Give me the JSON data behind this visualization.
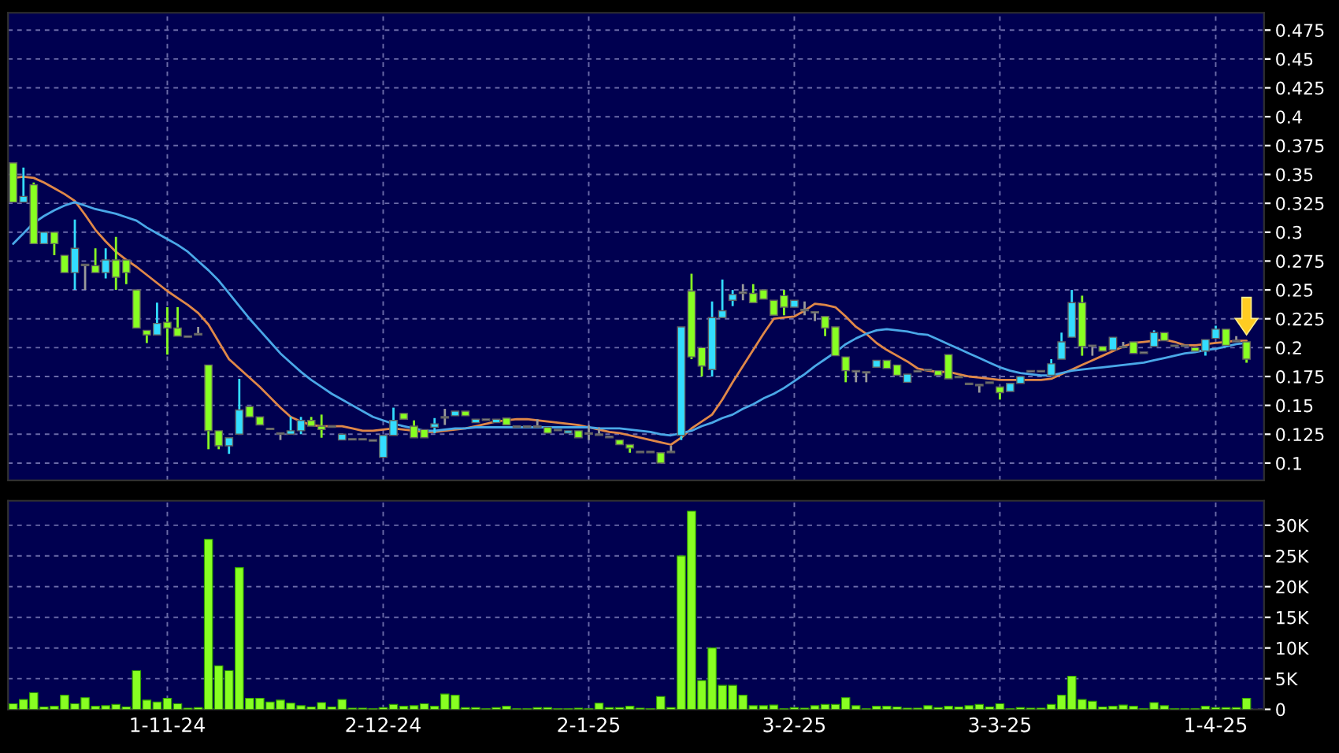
{
  "chart_data": [
    {
      "type": "candlestick",
      "categories": [
        null,
        null,
        null,
        null,
        null,
        null,
        null,
        null,
        null,
        null,
        null,
        null,
        null,
        null,
        null,
        null,
        null,
        null,
        null,
        null,
        null,
        null,
        null,
        null,
        null,
        null,
        null,
        null,
        null,
        null,
        null,
        null,
        null,
        null,
        null,
        null,
        null,
        null,
        null,
        null,
        null,
        null,
        null,
        null,
        null,
        null,
        null,
        null,
        null,
        null,
        null,
        null,
        null,
        null,
        null,
        null,
        null,
        null,
        null,
        null,
        null,
        null,
        null,
        null,
        null,
        null,
        null,
        null,
        null,
        null,
        null,
        null,
        null,
        null,
        null,
        null,
        null,
        null,
        null,
        null,
        null,
        null,
        null,
        null,
        null,
        null,
        null,
        null,
        null,
        null,
        null,
        null,
        null,
        null,
        null,
        null,
        null,
        null,
        null,
        null,
        null,
        null,
        null,
        null,
        null,
        null,
        null,
        null,
        null,
        null,
        null,
        null,
        null,
        null,
        null,
        null,
        null,
        null,
        null,
        null,
        null
      ],
      "ohlc": [
        [
          0.36,
          0.36,
          0.326,
          0.326
        ],
        [
          0.326,
          0.356,
          0.326,
          0.331
        ],
        [
          0.341,
          0.343,
          0.29,
          0.29
        ],
        [
          0.29,
          0.3,
          0.29,
          0.3
        ],
        [
          0.3,
          0.3,
          0.28,
          0.29
        ],
        [
          0.28,
          0.28,
          0.265,
          0.265
        ],
        [
          0.265,
          0.311,
          0.25,
          0.286
        ],
        [
          0.271,
          0.271,
          0.25,
          0.271
        ],
        [
          0.271,
          0.286,
          0.265,
          0.265
        ],
        [
          0.265,
          0.286,
          0.26,
          0.276
        ],
        [
          0.276,
          0.296,
          0.25,
          0.261
        ],
        [
          0.276,
          0.276,
          0.255,
          0.265
        ],
        [
          0.25,
          0.25,
          0.217,
          0.217
        ],
        [
          0.215,
          0.215,
          0.204,
          0.211
        ],
        [
          0.211,
          0.239,
          0.211,
          0.221
        ],
        [
          0.222,
          0.235,
          0.194,
          0.217
        ],
        [
          0.217,
          0.235,
          0.21,
          0.21
        ],
        [
          0.209,
          0.209,
          0.209,
          0.209
        ],
        [
          0.211,
          0.218,
          0.211,
          0.211
        ],
        [
          0.185,
          0.185,
          0.112,
          0.128
        ],
        [
          0.128,
          0.128,
          0.112,
          0.115
        ],
        [
          0.115,
          0.122,
          0.108,
          0.122
        ],
        [
          0.125,
          0.173,
          0.125,
          0.146
        ],
        [
          0.149,
          0.149,
          0.14,
          0.14
        ],
        [
          0.14,
          0.14,
          0.133,
          0.133
        ],
        [
          0.129,
          0.129,
          0.129,
          0.129
        ],
        [
          0.125,
          0.125,
          0.12,
          0.125
        ],
        [
          0.125,
          0.14,
          0.125,
          0.128
        ],
        [
          0.128,
          0.14,
          0.125,
          0.137
        ],
        [
          0.137,
          0.14,
          0.132,
          0.132
        ],
        [
          0.132,
          0.142,
          0.122,
          0.129
        ],
        [
          0.131,
          0.131,
          0.131,
          0.131
        ],
        [
          0.12,
          0.125,
          0.12,
          0.125
        ],
        [
          0.12,
          0.12,
          0.12,
          0.12
        ],
        [
          0.12,
          0.12,
          0.12,
          0.12
        ],
        [
          0.119,
          0.119,
          0.119,
          0.119
        ],
        [
          0.105,
          0.124,
          0.105,
          0.124
        ],
        [
          0.124,
          0.148,
          0.124,
          0.137
        ],
        [
          0.143,
          0.143,
          0.138,
          0.138
        ],
        [
          0.132,
          0.137,
          0.122,
          0.122
        ],
        [
          0.129,
          0.129,
          0.122,
          0.122
        ],
        [
          0.131,
          0.139,
          0.126,
          0.134
        ],
        [
          0.139,
          0.147,
          0.133,
          0.139
        ],
        [
          0.141,
          0.145,
          0.141,
          0.145
        ],
        [
          0.145,
          0.145,
          0.141,
          0.141
        ],
        [
          0.135,
          0.138,
          0.135,
          0.138
        ],
        [
          0.137,
          0.137,
          0.137,
          0.137
        ],
        [
          0.135,
          0.138,
          0.135,
          0.138
        ],
        [
          0.139,
          0.139,
          0.133,
          0.133
        ],
        [
          0.131,
          0.131,
          0.131,
          0.131
        ],
        [
          0.131,
          0.131,
          0.131,
          0.131
        ],
        [
          0.131,
          0.138,
          0.131,
          0.131
        ],
        [
          0.131,
          0.131,
          0.126,
          0.126
        ],
        [
          0.128,
          0.128,
          0.128,
          0.128
        ],
        [
          0.126,
          0.128,
          0.126,
          0.128
        ],
        [
          0.128,
          0.128,
          0.122,
          0.122
        ],
        [
          0.125,
          0.133,
          0.12,
          0.125
        ],
        [
          0.124,
          0.131,
          0.124,
          0.124
        ],
        [
          0.122,
          0.122,
          0.122,
          0.122
        ],
        [
          0.12,
          0.12,
          0.116,
          0.116
        ],
        [
          0.116,
          0.116,
          0.109,
          0.113
        ],
        [
          0.109,
          0.109,
          0.109,
          0.109
        ],
        [
          0.109,
          0.109,
          0.109,
          0.109
        ],
        [
          0.109,
          0.109,
          0.1,
          0.1
        ],
        [
          0.109,
          0.115,
          0.109,
          0.109
        ],
        [
          0.124,
          0.218,
          0.12,
          0.218
        ],
        [
          0.249,
          0.264,
          0.19,
          0.192
        ],
        [
          0.2,
          0.2,
          0.175,
          0.184
        ],
        [
          0.181,
          0.24,
          0.175,
          0.226
        ],
        [
          0.226,
          0.259,
          0.226,
          0.232
        ],
        [
          0.241,
          0.25,
          0.236,
          0.246
        ],
        [
          0.247,
          0.255,
          0.241,
          0.247
        ],
        [
          0.247,
          0.255,
          0.239,
          0.239
        ],
        [
          0.25,
          0.25,
          0.242,
          0.242
        ],
        [
          0.241,
          0.241,
          0.228,
          0.228
        ],
        [
          0.245,
          0.25,
          0.228,
          0.235
        ],
        [
          0.235,
          0.241,
          0.235,
          0.241
        ],
        [
          0.232,
          0.24,
          0.228,
          0.232
        ],
        [
          0.23,
          0.23,
          0.223,
          0.23
        ],
        [
          0.227,
          0.227,
          0.21,
          0.217
        ],
        [
          0.218,
          0.218,
          0.193,
          0.193
        ],
        [
          0.192,
          0.192,
          0.17,
          0.18
        ],
        [
          0.179,
          0.179,
          0.17,
          0.179
        ],
        [
          0.178,
          0.178,
          0.17,
          0.178
        ],
        [
          0.183,
          0.189,
          0.183,
          0.189
        ],
        [
          0.189,
          0.189,
          0.182,
          0.182
        ],
        [
          0.185,
          0.185,
          0.176,
          0.176
        ],
        [
          0.17,
          0.177,
          0.17,
          0.177
        ],
        [
          0.179,
          0.179,
          0.179,
          0.179
        ],
        [
          0.18,
          0.18,
          0.18,
          0.18
        ],
        [
          0.18,
          0.18,
          0.176,
          0.176
        ],
        [
          0.194,
          0.194,
          0.173,
          0.173
        ],
        [
          0.174,
          0.174,
          0.174,
          0.174
        ],
        [
          0.168,
          0.168,
          0.168,
          0.168
        ],
        [
          0.167,
          0.167,
          0.161,
          0.167
        ],
        [
          0.169,
          0.169,
          0.169,
          0.169
        ],
        [
          0.166,
          0.166,
          0.155,
          0.161
        ],
        [
          0.162,
          0.169,
          0.162,
          0.169
        ],
        [
          0.169,
          0.175,
          0.169,
          0.175
        ],
        [
          0.179,
          0.179,
          0.179,
          0.179
        ],
        [
          0.179,
          0.179,
          0.179,
          0.179
        ],
        [
          0.176,
          0.19,
          0.176,
          0.186
        ],
        [
          0.19,
          0.213,
          0.19,
          0.205
        ],
        [
          0.209,
          0.25,
          0.209,
          0.239
        ],
        [
          0.239,
          0.245,
          0.193,
          0.201
        ],
        [
          0.201,
          0.201,
          0.193,
          0.201
        ],
        [
          0.201,
          0.201,
          0.197,
          0.197
        ],
        [
          0.198,
          0.209,
          0.198,
          0.209
        ],
        [
          0.2,
          0.205,
          0.2,
          0.2
        ],
        [
          0.205,
          0.205,
          0.195,
          0.195
        ],
        [
          0.195,
          0.195,
          0.195,
          0.195
        ],
        [
          0.201,
          0.215,
          0.201,
          0.213
        ],
        [
          0.213,
          0.213,
          0.206,
          0.206
        ],
        [
          0.201,
          0.201,
          0.201,
          0.201
        ],
        [
          0.201,
          0.201,
          0.201,
          0.201
        ],
        [
          0.2,
          0.2,
          0.197,
          0.197
        ],
        [
          0.197,
          0.207,
          0.193,
          0.207
        ],
        [
          0.208,
          0.219,
          0.208,
          0.216
        ],
        [
          0.216,
          0.216,
          0.202,
          0.202
        ],
        [
          0.205,
          0.21,
          0.205,
          0.205
        ],
        [
          0.205,
          0.205,
          0.187,
          0.19
        ]
      ],
      "colors": [
        "#88ff22",
        "#33ddff",
        "#88ff22",
        "#33ddff",
        "#88ff22",
        "#88ff22",
        "#33ddff",
        "#9a9a9a",
        "#88ff22",
        "#33ddff",
        "#88ff22",
        "#88ff22",
        "#88ff22",
        "#88ff22",
        "#33ddff",
        "#88ff22",
        "#88ff22",
        "#9a9a9a",
        "#9a9a9a",
        "#88ff22",
        "#88ff22",
        "#33ddff",
        "#33ddff",
        "#88ff22",
        "#88ff22",
        "#9a9a9a",
        "#9a9a9a",
        "#33ddff",
        "#33ddff",
        "#88ff22",
        "#88ff22",
        "#9a9a9a",
        "#33ddff",
        "#9a9a9a",
        "#9a9a9a",
        "#9a9a9a",
        "#33ddff",
        "#33ddff",
        "#88ff22",
        "#88ff22",
        "#88ff22",
        "#33ddff",
        "#9a9a9a",
        "#33ddff",
        "#88ff22",
        "#33ddff",
        "#9a9a9a",
        "#33ddff",
        "#88ff22",
        "#9a9a9a",
        "#9a9a9a",
        "#9a9a9a",
        "#88ff22",
        "#9a9a9a",
        "#33ddff",
        "#88ff22",
        "#9a9a9a",
        "#9a9a9a",
        "#9a9a9a",
        "#88ff22",
        "#88ff22",
        "#9a9a9a",
        "#9a9a9a",
        "#88ff22",
        "#9a9a9a",
        "#33ddff",
        "#88ff22",
        "#88ff22",
        "#33ddff",
        "#33ddff",
        "#33ddff",
        "#9a9a9a",
        "#88ff22",
        "#88ff22",
        "#88ff22",
        "#88ff22",
        "#33ddff",
        "#9a9a9a",
        "#9a9a9a",
        "#88ff22",
        "#88ff22",
        "#88ff22",
        "#9a9a9a",
        "#9a9a9a",
        "#33ddff",
        "#88ff22",
        "#88ff22",
        "#33ddff",
        "#9a9a9a",
        "#9a9a9a",
        "#88ff22",
        "#88ff22",
        "#9a9a9a",
        "#9a9a9a",
        "#9a9a9a",
        "#9a9a9a",
        "#88ff22",
        "#33ddff",
        "#33ddff",
        "#9a9a9a",
        "#9a9a9a",
        "#33ddff",
        "#33ddff",
        "#33ddff",
        "#88ff22",
        "#9a9a9a",
        "#88ff22",
        "#33ddff",
        "#9a9a9a",
        "#88ff22",
        "#9a9a9a",
        "#33ddff",
        "#88ff22",
        "#9a9a9a",
        "#9a9a9a",
        "#88ff22",
        "#33ddff",
        "#33ddff",
        "#88ff22",
        "#9a9a9a",
        "#88ff22"
      ],
      "series": [
        {
          "type": "line",
          "color": "#e08848",
          "values": [
            0.347,
            0.348,
            0.347,
            0.343,
            0.338,
            0.333,
            0.327,
            0.315,
            0.302,
            0.292,
            0.283,
            0.276,
            0.27,
            0.263,
            0.256,
            0.249,
            0.243,
            0.237,
            0.23,
            0.22,
            0.205,
            0.19,
            0.182,
            0.174,
            0.166,
            0.157,
            0.148,
            0.14,
            0.136,
            0.133,
            0.132,
            0.132,
            0.132,
            0.13,
            0.128,
            0.128,
            0.129,
            0.13,
            0.129,
            0.128,
            0.127,
            0.127,
            0.128,
            0.129,
            0.13,
            0.132,
            0.134,
            0.136,
            0.137,
            0.138,
            0.138,
            0.137,
            0.136,
            0.135,
            0.134,
            0.133,
            0.131,
            0.129,
            0.127,
            0.126,
            0.124,
            0.122,
            0.12,
            0.118,
            0.116,
            0.122,
            0.13,
            0.136,
            0.142,
            0.155,
            0.17,
            0.184,
            0.198,
            0.212,
            0.225,
            0.226,
            0.227,
            0.232,
            0.238,
            0.237,
            0.235,
            0.227,
            0.218,
            0.212,
            0.204,
            0.198,
            0.193,
            0.188,
            0.182,
            0.18,
            0.179,
            0.179,
            0.177,
            0.175,
            0.174,
            0.173,
            0.172,
            0.172,
            0.172,
            0.172,
            0.172,
            0.173,
            0.177,
            0.181,
            0.185,
            0.189,
            0.193,
            0.197,
            0.201,
            0.204,
            0.205,
            0.206,
            0.207,
            0.205,
            0.202,
            0.202,
            0.203,
            0.204,
            0.205,
            0.206,
            0.206
          ]
        },
        {
          "type": "line",
          "color": "#4aa8e8",
          "values": [
            0.29,
            0.299,
            0.308,
            0.314,
            0.319,
            0.323,
            0.326,
            0.323,
            0.32,
            0.318,
            0.316,
            0.313,
            0.31,
            0.304,
            0.299,
            0.294,
            0.289,
            0.283,
            0.275,
            0.267,
            0.258,
            0.247,
            0.236,
            0.225,
            0.215,
            0.205,
            0.195,
            0.187,
            0.179,
            0.172,
            0.166,
            0.16,
            0.155,
            0.15,
            0.145,
            0.14,
            0.137,
            0.134,
            0.132,
            0.13,
            0.128,
            0.128,
            0.129,
            0.13,
            0.13,
            0.131,
            0.131,
            0.131,
            0.131,
            0.131,
            0.131,
            0.131,
            0.131,
            0.131,
            0.131,
            0.131,
            0.131,
            0.13,
            0.13,
            0.13,
            0.129,
            0.128,
            0.127,
            0.125,
            0.124,
            0.126,
            0.128,
            0.132,
            0.135,
            0.139,
            0.142,
            0.147,
            0.151,
            0.156,
            0.16,
            0.165,
            0.171,
            0.177,
            0.184,
            0.19,
            0.196,
            0.203,
            0.208,
            0.212,
            0.215,
            0.216,
            0.215,
            0.214,
            0.212,
            0.211,
            0.207,
            0.203,
            0.199,
            0.195,
            0.191,
            0.187,
            0.183,
            0.18,
            0.178,
            0.177,
            0.176,
            0.176,
            0.178,
            0.18,
            0.181,
            0.182,
            0.183,
            0.184,
            0.185,
            0.186,
            0.187,
            0.189,
            0.191,
            0.193,
            0.195,
            0.196,
            0.198,
            0.199,
            0.201,
            0.203,
            0.204
          ]
        }
      ],
      "ylim": [
        0.085,
        0.49
      ],
      "yticks": [
        0.1,
        0.125,
        0.15,
        0.175,
        0.2,
        0.225,
        0.25,
        0.275,
        0.3,
        0.325,
        0.35,
        0.375,
        0.4,
        0.425,
        0.45,
        0.475
      ],
      "grid": true,
      "tick_labels": "y"
    },
    {
      "type": "bar",
      "categories": [
        null,
        null,
        null,
        null,
        null,
        null,
        null,
        null,
        null,
        null,
        null,
        null,
        null,
        null,
        null,
        "1-11-24",
        null,
        null,
        null,
        null,
        null,
        null,
        null,
        null,
        null,
        null,
        null,
        null,
        null,
        null,
        null,
        null,
        null,
        null,
        null,
        null,
        "2-12-24",
        null,
        null,
        null,
        null,
        null,
        null,
        null,
        null,
        null,
        null,
        null,
        null,
        null,
        null,
        null,
        null,
        null,
        null,
        null,
        "2-1-25",
        null,
        null,
        null,
        null,
        null,
        null,
        null,
        null,
        null,
        null,
        null,
        null,
        null,
        null,
        null,
        null,
        null,
        null,
        null,
        "3-2-25",
        null,
        null,
        null,
        null,
        null,
        null,
        null,
        null,
        null,
        null,
        null,
        null,
        null,
        null,
        null,
        null,
        null,
        null,
        null,
        "3-3-25",
        null,
        null,
        null,
        null,
        null,
        null,
        null,
        null,
        null,
        null,
        null,
        null,
        null,
        null,
        null,
        null,
        null,
        null,
        null,
        null,
        "1-4-25",
        null,
        null,
        null
      ],
      "values": [
        900,
        1600,
        2700,
        400,
        500,
        2300,
        900,
        1900,
        500,
        600,
        800,
        400,
        6300,
        1500,
        1200,
        1800,
        900,
        200,
        300,
        27700,
        7100,
        6300,
        23100,
        1800,
        1800,
        1200,
        1500,
        1000,
        600,
        400,
        1100,
        400,
        1600,
        200,
        200,
        100,
        300,
        800,
        500,
        600,
        900,
        500,
        2500,
        2300,
        300,
        300,
        100,
        300,
        500,
        100,
        100,
        300,
        300,
        100,
        100,
        200,
        100,
        1000,
        300,
        300,
        500,
        200,
        100,
        2100,
        300,
        25000,
        32300,
        4700,
        10000,
        3900,
        3900,
        2300,
        600,
        600,
        700,
        100,
        300,
        200,
        600,
        800,
        800,
        1900,
        600,
        100,
        500,
        500,
        400,
        200,
        200,
        600,
        300,
        500,
        400,
        600,
        800,
        400,
        900,
        100,
        300,
        200,
        200,
        800,
        2300,
        5400,
        1600,
        1300,
        400,
        500,
        700,
        500,
        100,
        1100,
        600,
        100,
        100,
        100,
        500,
        300,
        300,
        300,
        1800
      ],
      "color": "#88ff22",
      "ylim": [
        0,
        34000
      ],
      "yticks": [
        0,
        {
          "value": 5000,
          "label": "5K"
        },
        {
          "value": 10000,
          "label": "10K"
        },
        {
          "value": 15000,
          "label": "15K"
        },
        {
          "value": 20000,
          "label": "20K"
        },
        {
          "value": 25000,
          "label": "25K"
        },
        {
          "value": 30000,
          "label": "30K"
        }
      ],
      "grid": true
    }
  ]
}
